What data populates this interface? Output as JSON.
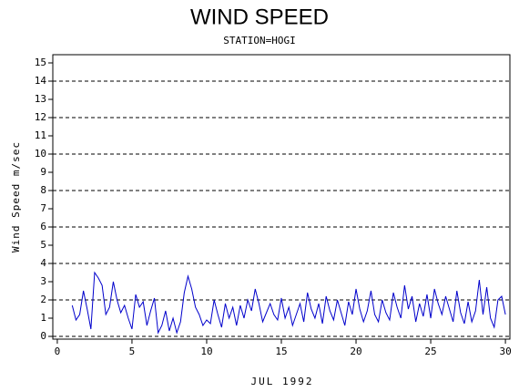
{
  "chart_data": {
    "type": "line",
    "title": "WIND SPEED",
    "subtitle": "STATION=HOGI",
    "x_label": "JUL 1992",
    "y_label": "Wind Speed m/sec",
    "xlim": [
      -0.3,
      30.3
    ],
    "xticks": [
      0,
      5,
      10,
      15,
      20,
      25,
      30
    ],
    "ylim": [
      -0.15,
      15.45
    ],
    "yticks": [
      0,
      1,
      2,
      3,
      4,
      5,
      6,
      7,
      8,
      9,
      10,
      11,
      12,
      13,
      14,
      15
    ],
    "grid_values": [
      0,
      2,
      4,
      6,
      8,
      10,
      12,
      14
    ],
    "series": [
      {
        "color": "#0000cc",
        "x": [
          1,
          1.25,
          1.5,
          1.75,
          2,
          2.25,
          2.5,
          2.75,
          3,
          3.25,
          3.5,
          3.75,
          4,
          4.25,
          4.5,
          4.75,
          5,
          5.25,
          5.5,
          5.75,
          6,
          6.25,
          6.5,
          6.75,
          7,
          7.25,
          7.5,
          7.75,
          8,
          8.25,
          8.5,
          8.75,
          9,
          9.25,
          9.5,
          9.75,
          10,
          10.25,
          10.5,
          10.75,
          11,
          11.25,
          11.5,
          11.75,
          12,
          12.25,
          12.5,
          12.75,
          13,
          13.25,
          13.5,
          13.75,
          14,
          14.25,
          14.5,
          14.75,
          15,
          15.25,
          15.5,
          15.75,
          16,
          16.25,
          16.5,
          16.75,
          17,
          17.25,
          17.5,
          17.75,
          18,
          18.25,
          18.5,
          18.75,
          19,
          19.25,
          19.5,
          19.75,
          20,
          20.25,
          20.5,
          20.75,
          21,
          21.25,
          21.5,
          21.75,
          22,
          22.25,
          22.5,
          22.75,
          23,
          23.25,
          23.5,
          23.75,
          24,
          24.25,
          24.5,
          24.75,
          25,
          25.25,
          25.5,
          25.75,
          26,
          26.25,
          26.5,
          26.75,
          27,
          27.25,
          27.5,
          27.75,
          28,
          28.25,
          28.5,
          28.75,
          29,
          29.25,
          29.5,
          29.75,
          30
        ],
        "values": [
          1.7,
          0.9,
          1.2,
          2.5,
          1.5,
          0.4,
          3.5,
          3.2,
          2.8,
          1.2,
          1.6,
          3.0,
          2.0,
          1.3,
          1.7,
          1.0,
          0.4,
          2.3,
          1.6,
          1.9,
          0.6,
          1.4,
          2.1,
          0.2,
          0.6,
          1.4,
          0.3,
          1.0,
          0.2,
          0.8,
          2.4,
          3.3,
          2.6,
          1.6,
          1.2,
          0.6,
          0.9,
          0.7,
          2.0,
          1.2,
          0.5,
          1.8,
          1.0,
          1.6,
          0.6,
          1.7,
          1.0,
          2.0,
          1.4,
          2.6,
          1.8,
          0.8,
          1.3,
          1.8,
          1.2,
          0.9,
          2.1,
          1.0,
          1.6,
          0.6,
          1.2,
          1.8,
          0.8,
          2.4,
          1.5,
          1.0,
          1.8,
          0.7,
          2.2,
          1.4,
          0.9,
          2.0,
          1.3,
          0.6,
          1.9,
          1.2,
          2.6,
          1.5,
          0.8,
          1.4,
          2.5,
          1.2,
          0.8,
          2.0,
          1.3,
          0.9,
          2.4,
          1.6,
          1.0,
          2.8,
          1.5,
          2.2,
          0.8,
          1.8,
          1.1,
          2.3,
          1.0,
          2.6,
          1.8,
          1.2,
          2.2,
          1.5,
          0.8,
          2.5,
          1.3,
          0.7,
          1.9,
          0.8,
          1.4,
          3.1,
          1.2,
          2.7,
          1.0,
          0.5,
          2.0,
          2.2,
          1.2
        ]
      }
    ]
  }
}
